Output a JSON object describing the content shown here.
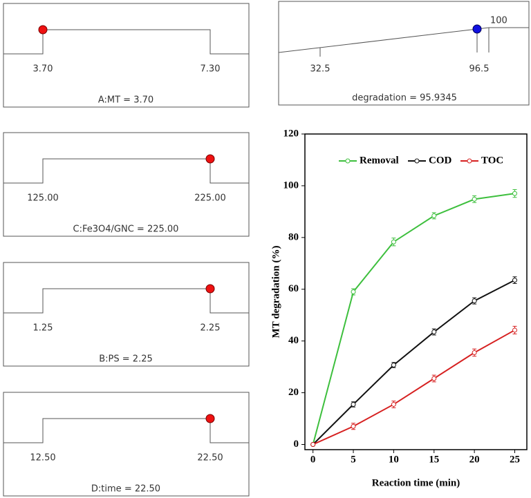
{
  "panels": [
    {
      "low": "3.70",
      "high": "7.30",
      "caption": "A:MT = 3.70"
    },
    {
      "low": "125.00",
      "high": "225.00",
      "caption": "C:Fe3O4/GNC  = 225.00"
    },
    {
      "low": "1.25",
      "high": "2.25",
      "caption": "B:PS = 2.25"
    },
    {
      "low": "12.50",
      "high": "22.50",
      "caption": "D:time = 22.50"
    }
  ],
  "response": {
    "low": "32.5",
    "high": "96.5",
    "top": "100",
    "caption": "degradation  = 95.9345"
  },
  "chart_data": {
    "type": "line",
    "x_label": "Reaction time (min)",
    "y_label": "MT degradation (%)",
    "x": [
      0,
      5,
      10,
      15,
      20,
      25
    ],
    "xlim": [
      -1,
      26.5
    ],
    "xticks": [
      0,
      5,
      10,
      15,
      20,
      25
    ],
    "ylim": [
      -2,
      120
    ],
    "yticks": [
      0,
      20,
      40,
      60,
      80,
      100,
      120
    ],
    "series": [
      {
        "name": "Removal",
        "color": "#3dbf3d",
        "values": [
          0,
          59,
          78.3,
          88.4,
          94.8,
          97
        ],
        "errors": [
          0,
          1.2,
          1.5,
          1.2,
          1.3,
          1.5
        ]
      },
      {
        "name": "COD",
        "color": "#111111",
        "values": [
          0,
          15.5,
          30.7,
          43.5,
          55.5,
          63.5
        ],
        "errors": [
          0,
          1,
          1,
          1.2,
          1.2,
          1.3
        ]
      },
      {
        "name": "TOC",
        "color": "#d62020",
        "values": [
          0,
          7,
          15.5,
          25.5,
          35.5,
          44.2
        ],
        "errors": [
          0,
          1.2,
          1.3,
          1.3,
          1.4,
          1.5
        ]
      }
    ]
  }
}
